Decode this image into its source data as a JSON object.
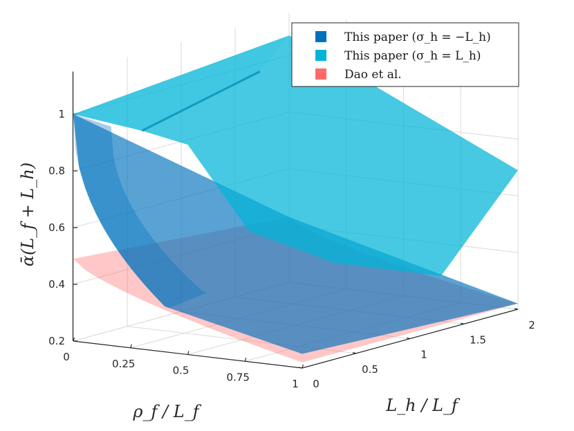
{
  "chart_data": {
    "type": "surface3d",
    "title": "",
    "xlabel": "ρ_f / L_f",
    "ylabel": "L_h / L_f",
    "zlabel": "ᾱ(L_f + L_h)",
    "xlim": [
      0,
      1
    ],
    "ylim": [
      0,
      2
    ],
    "zlim": [
      0.2,
      1.15
    ],
    "x_ticks": [
      "0",
      "0.25",
      "0.5",
      "0.75",
      "1"
    ],
    "y_ticks": [
      "0",
      "0.5",
      "1",
      "1.5",
      "2"
    ],
    "z_ticks": [
      "0.2",
      "0.4",
      "0.6",
      "0.8",
      "1"
    ],
    "grid": true,
    "legend_position": "top-right",
    "series": [
      {
        "name": "This paper (σ_h = −L_h)",
        "color": "#0072BD",
        "corner_values": {
          "rho0_L0": 1.0,
          "rho1_L0": 0.25,
          "rho0_L2": 0.43,
          "rho1_L2": 0.22
        },
        "knee_values": {
          "rho0.4_L0": 0.36,
          "rho0.4_L2": 0.43
        }
      },
      {
        "name": "This paper (σ_h = L_h)",
        "color": "#00B4D8",
        "corner_values": {
          "rho0_L0": 1.0,
          "rho0.5_L0": 0.94,
          "rho0_L2": 1.07,
          "rho1_L2": 0.69
        },
        "edge_samples": [
          {
            "rho": 0.5,
            "L": 0.0,
            "z": 0.94
          },
          {
            "rho": 0.58,
            "L": 0.4,
            "z": 0.6
          },
          {
            "rho": 0.72,
            "L": 0.9,
            "z": 0.45
          },
          {
            "rho": 0.9,
            "L": 1.5,
            "z": 0.36
          }
        ]
      },
      {
        "name": "Dao et al.",
        "color": "#FF6B6B",
        "corner_values": {
          "rho0_L0": 0.49,
          "rho1_L0": 0.22,
          "rho0_L2": 0.43,
          "rho1_L2": 0.22
        }
      }
    ]
  }
}
